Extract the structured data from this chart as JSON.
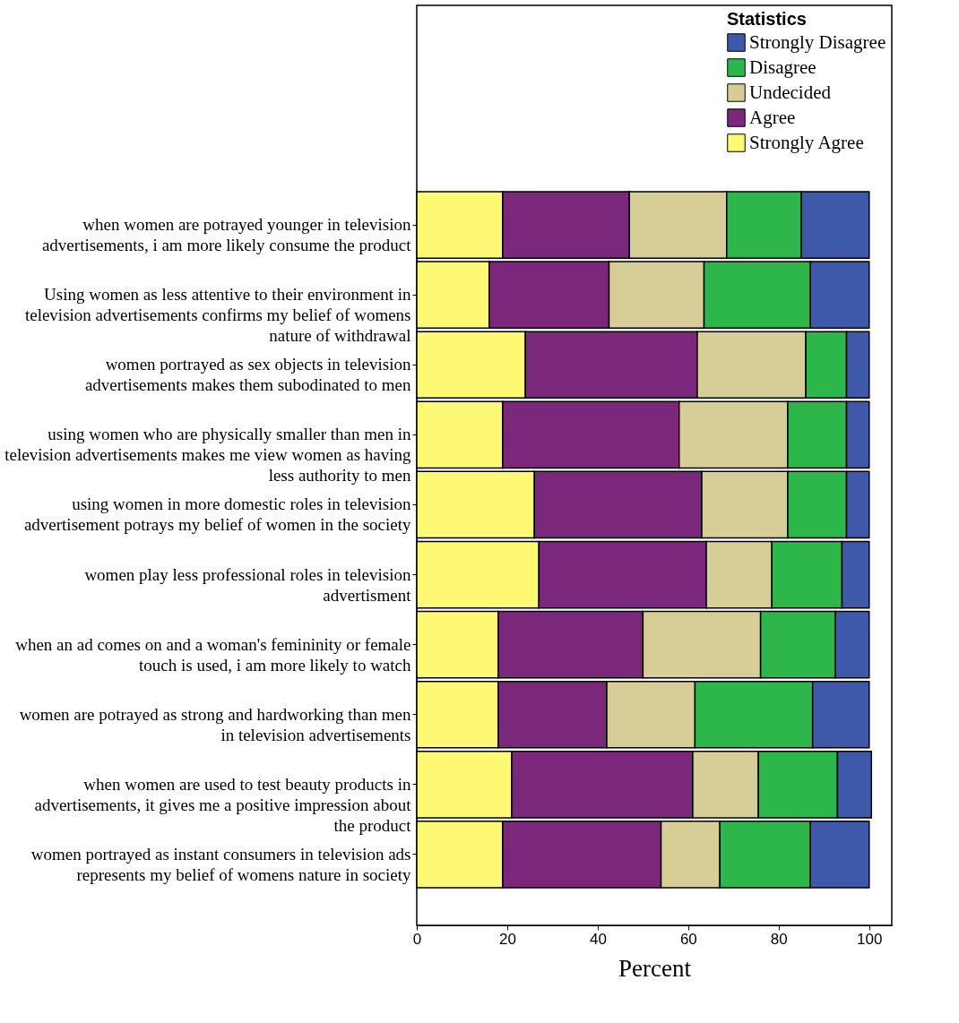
{
  "chart_data": {
    "type": "bar",
    "orientation": "horizontal",
    "stacked": true,
    "xlabel": "Percent",
    "legend_title": "Statistics",
    "legend": "top right",
    "xlim": [
      0,
      105
    ],
    "xticks": [
      0,
      20,
      40,
      60,
      80,
      100
    ],
    "categories": [
      "when women are potrayed younger in television advertisements, i am more likely consume the product",
      "Using women as less attentive to their environment in television advertisements confirms my belief of womens nature of withdrawal",
      "women portrayed as sex objects in television advertisements makes them subodinated to men",
      "using women who are physically smaller than men in television advertisements makes me view women as having less authority to men",
      "using women in more domestic roles in television advertisement potrays my belief of women in the society",
      "women play less professional roles in television advertisment",
      "when an ad comes on and a woman's femininity or female touch is used, i am more likely to watch",
      "women are potrayed as strong and hardworking than men in television advertisements",
      "when women are used to test beauty products in advertisements, it gives me a positive impression about the product",
      "women portrayed as instant consumers in television ads represents my belief of womens nature in society"
    ],
    "series": [
      {
        "name": "Strongly Agree",
        "color": "#fdf975",
        "values": [
          19,
          16,
          24,
          19,
          26,
          27,
          18,
          18,
          21,
          19
        ]
      },
      {
        "name": "Agree",
        "color": "#7b287c",
        "values": [
          28,
          26.5,
          38,
          39,
          37,
          37,
          32,
          24,
          40,
          35
        ]
      },
      {
        "name": "Undecided",
        "color": "#d6ce96",
        "values": [
          21.5,
          21,
          24,
          24,
          19,
          14.5,
          26,
          19.5,
          14.5,
          13
        ]
      },
      {
        "name": "Disagree",
        "color": "#2db74a",
        "values": [
          16.5,
          23.5,
          9,
          13,
          13,
          15.5,
          16.5,
          26,
          17.5,
          20
        ]
      },
      {
        "name": "Strongly Disagree",
        "color": "#3e59aa",
        "values": [
          15,
          13,
          5,
          5,
          5,
          6,
          7.5,
          12.5,
          7.5,
          13
        ]
      }
    ]
  }
}
